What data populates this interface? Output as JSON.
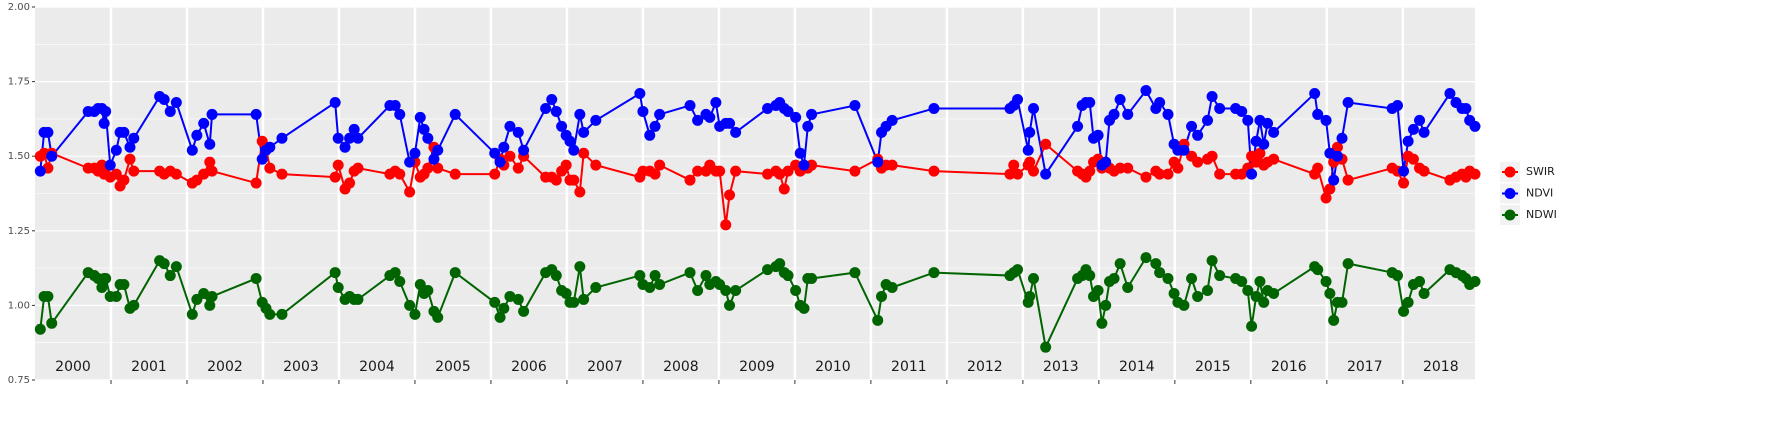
{
  "chart_data": {
    "type": "line",
    "years": [
      2000,
      2001,
      2002,
      2003,
      2004,
      2005,
      2006,
      2007,
      2008,
      2009,
      2010,
      2011,
      2012,
      2013,
      2014,
      2015,
      2016,
      2017,
      2018
    ],
    "x": [
      2000.07,
      2000.12,
      2000.17,
      2000.22,
      2000.7,
      2000.78,
      2000.83,
      2000.88,
      2000.91,
      2000.93,
      2000.99,
      2001.07,
      2001.12,
      2001.17,
      2001.25,
      2001.3,
      2001.64,
      2001.7,
      2001.78,
      2001.86,
      2002.07,
      2002.13,
      2002.22,
      2002.3,
      2002.33,
      2002.91,
      2002.99,
      2003.04,
      2003.09,
      2003.25,
      2003.95,
      2003.99,
      2004.08,
      2004.14,
      2004.2,
      2004.25,
      2004.67,
      2004.74,
      2004.8,
      2004.93,
      2005.0,
      2005.07,
      2005.12,
      2005.17,
      2005.25,
      2005.3,
      2005.53,
      2006.05,
      2006.12,
      2006.17,
      2006.25,
      2006.36,
      2006.43,
      2006.72,
      2006.8,
      2006.86,
      2006.93,
      2006.99,
      2007.04,
      2007.09,
      2007.17,
      2007.22,
      2007.38,
      2007.96,
      2008.0,
      2008.09,
      2008.16,
      2008.22,
      2008.62,
      2008.72,
      2008.83,
      2008.88,
      2008.96,
      2009.01,
      2009.09,
      2009.14,
      2009.22,
      2009.64,
      2009.75,
      2009.8,
      2009.86,
      2009.91,
      2010.01,
      2010.07,
      2010.12,
      2010.17,
      2010.22,
      2010.79,
      2011.09,
      2011.14,
      2011.2,
      2011.28,
      2011.83,
      2012.83,
      2012.88,
      2012.93,
      2013.07,
      2013.09,
      2013.14,
      2013.3,
      2013.72,
      2013.78,
      2013.83,
      2013.88,
      2013.93,
      2013.99,
      2014.04,
      2014.09,
      2014.14,
      2014.2,
      2014.28,
      2014.38,
      2014.62,
      2014.75,
      2014.8,
      2014.91,
      2014.99,
      2015.04,
      2015.12,
      2015.22,
      2015.3,
      2015.43,
      2015.49,
      2015.59,
      2015.8,
      2015.88,
      2015.96,
      2016.01,
      2016.07,
      2016.12,
      2016.17,
      2016.22,
      2016.3,
      2016.84,
      2016.88,
      2016.99,
      2017.04,
      2017.09,
      2017.14,
      2017.2,
      2017.28,
      2017.86,
      2017.93,
      2018.01,
      2018.07,
      2018.14,
      2018.22,
      2018.28,
      2018.62,
      2018.7,
      2018.78,
      2018.83,
      2018.88,
      2018.95
    ],
    "series": [
      {
        "name": "SWIR",
        "color": "#ff0000",
        "values": [
          1.5,
          1.51,
          1.46,
          1.51,
          1.46,
          1.46,
          1.45,
          1.47,
          1.44,
          1.46,
          1.43,
          1.44,
          1.4,
          1.42,
          1.49,
          1.45,
          1.45,
          1.44,
          1.45,
          1.44,
          1.41,
          1.42,
          1.44,
          1.48,
          1.45,
          1.41,
          1.55,
          1.53,
          1.46,
          1.44,
          1.43,
          1.47,
          1.39,
          1.41,
          1.45,
          1.46,
          1.44,
          1.45,
          1.44,
          1.38,
          1.48,
          1.43,
          1.44,
          1.46,
          1.53,
          1.46,
          1.44,
          1.44,
          1.49,
          1.47,
          1.5,
          1.46,
          1.5,
          1.43,
          1.43,
          1.42,
          1.45,
          1.47,
          1.42,
          1.42,
          1.38,
          1.51,
          1.47,
          1.43,
          1.45,
          1.45,
          1.44,
          1.47,
          1.42,
          1.45,
          1.45,
          1.47,
          1.45,
          1.45,
          1.27,
          1.37,
          1.45,
          1.44,
          1.45,
          1.44,
          1.39,
          1.45,
          1.47,
          1.45,
          1.46,
          1.46,
          1.47,
          1.45,
          1.49,
          1.46,
          1.47,
          1.47,
          1.45,
          1.44,
          1.47,
          1.44,
          1.47,
          1.48,
          1.45,
          1.54,
          1.45,
          1.44,
          1.43,
          1.45,
          1.48,
          1.49,
          1.46,
          1.47,
          1.46,
          1.45,
          1.46,
          1.46,
          1.43,
          1.45,
          1.44,
          1.44,
          1.48,
          1.46,
          1.54,
          1.5,
          1.48,
          1.49,
          1.5,
          1.44,
          1.44,
          1.44,
          1.46,
          1.5,
          1.48,
          1.51,
          1.47,
          1.48,
          1.49,
          1.44,
          1.46,
          1.36,
          1.39,
          1.48,
          1.53,
          1.49,
          1.42,
          1.46,
          1.45,
          1.41,
          1.5,
          1.49,
          1.46,
          1.45,
          1.42,
          1.43,
          1.44,
          1.43,
          1.45,
          1.44
        ]
      },
      {
        "name": "NDVI",
        "color": "#0000ff",
        "values": [
          1.45,
          1.58,
          1.58,
          1.5,
          1.65,
          1.65,
          1.66,
          1.66,
          1.61,
          1.65,
          1.47,
          1.52,
          1.58,
          1.58,
          1.53,
          1.56,
          1.7,
          1.69,
          1.65,
          1.68,
          1.52,
          1.57,
          1.61,
          1.54,
          1.64,
          1.64,
          1.49,
          1.52,
          1.53,
          1.56,
          1.68,
          1.56,
          1.53,
          1.56,
          1.59,
          1.56,
          1.67,
          1.67,
          1.64,
          1.48,
          1.51,
          1.63,
          1.59,
          1.56,
          1.49,
          1.52,
          1.64,
          1.51,
          1.48,
          1.53,
          1.6,
          1.58,
          1.52,
          1.66,
          1.69,
          1.65,
          1.6,
          1.57,
          1.55,
          1.52,
          1.64,
          1.58,
          1.62,
          1.71,
          1.65,
          1.57,
          1.6,
          1.64,
          1.67,
          1.62,
          1.64,
          1.63,
          1.68,
          1.6,
          1.61,
          1.61,
          1.58,
          1.66,
          1.67,
          1.68,
          1.66,
          1.65,
          1.63,
          1.51,
          1.47,
          1.6,
          1.64,
          1.67,
          1.48,
          1.58,
          1.6,
          1.62,
          1.66,
          1.66,
          1.67,
          1.69,
          1.52,
          1.58,
          1.66,
          1.44,
          1.6,
          1.67,
          1.68,
          1.68,
          1.56,
          1.57,
          1.47,
          1.48,
          1.62,
          1.64,
          1.69,
          1.64,
          1.72,
          1.66,
          1.68,
          1.64,
          1.54,
          1.52,
          1.52,
          1.6,
          1.57,
          1.62,
          1.7,
          1.66,
          1.66,
          1.65,
          1.62,
          1.44,
          1.55,
          1.62,
          1.54,
          1.61,
          1.58,
          1.71,
          1.64,
          1.62,
          1.51,
          1.42,
          1.5,
          1.56,
          1.68,
          1.66,
          1.67,
          1.45,
          1.55,
          1.59,
          1.62,
          1.58,
          1.71,
          1.68,
          1.66,
          1.66,
          1.62,
          1.6
        ]
      },
      {
        "name": "NDWI",
        "color": "#006400",
        "values": [
          0.92,
          1.03,
          1.03,
          0.94,
          1.11,
          1.1,
          1.09,
          1.06,
          1.09,
          1.09,
          1.03,
          1.03,
          1.07,
          1.07,
          0.99,
          1.0,
          1.15,
          1.14,
          1.1,
          1.13,
          0.97,
          1.02,
          1.04,
          1.0,
          1.03,
          1.09,
          1.01,
          0.99,
          0.97,
          0.97,
          1.11,
          1.06,
          1.02,
          1.03,
          1.02,
          1.02,
          1.1,
          1.11,
          1.08,
          1.0,
          0.97,
          1.07,
          1.04,
          1.05,
          0.98,
          0.96,
          1.11,
          1.01,
          0.96,
          0.99,
          1.03,
          1.02,
          0.98,
          1.11,
          1.12,
          1.1,
          1.05,
          1.04,
          1.01,
          1.01,
          1.13,
          1.02,
          1.06,
          1.1,
          1.07,
          1.06,
          1.1,
          1.07,
          1.11,
          1.05,
          1.1,
          1.07,
          1.08,
          1.07,
          1.05,
          1.0,
          1.05,
          1.12,
          1.13,
          1.14,
          1.11,
          1.1,
          1.05,
          1.0,
          0.99,
          1.09,
          1.09,
          1.11,
          0.95,
          1.03,
          1.07,
          1.06,
          1.11,
          1.1,
          1.11,
          1.12,
          1.01,
          1.03,
          1.09,
          0.86,
          1.09,
          1.1,
          1.12,
          1.1,
          1.03,
          1.05,
          0.94,
          1.0,
          1.08,
          1.09,
          1.14,
          1.06,
          1.16,
          1.14,
          1.11,
          1.09,
          1.04,
          1.01,
          1.0,
          1.09,
          1.03,
          1.05,
          1.15,
          1.1,
          1.09,
          1.08,
          1.05,
          0.93,
          1.03,
          1.08,
          1.01,
          1.05,
          1.04,
          1.13,
          1.12,
          1.08,
          1.04,
          0.95,
          1.01,
          1.01,
          1.14,
          1.11,
          1.1,
          0.98,
          1.01,
          1.07,
          1.08,
          1.04,
          1.12,
          1.11,
          1.1,
          1.09,
          1.07,
          1.08
        ]
      }
    ],
    "xlim": [
      2000,
      2018.95
    ],
    "ylim": [
      0.75,
      2.0
    ],
    "yticks": [
      0.75,
      {
        "value": 1,
        "label": "1.00"
      },
      1.25,
      {
        "value": 1.5,
        "label": "1.50"
      },
      1.75,
      {
        "value": 2,
        "label": "2.00"
      }
    ],
    "grid": true,
    "legend": "right"
  }
}
